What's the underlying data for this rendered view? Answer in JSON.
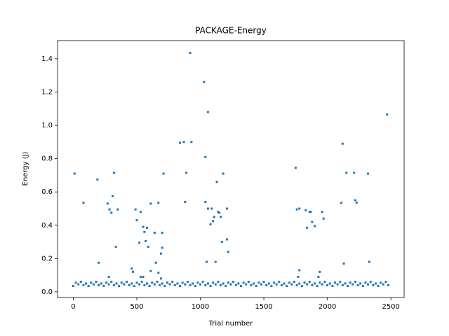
{
  "chart_data": {
    "type": "scatter",
    "title": "PACKAGE-Energy",
    "xlabel": "Trial number",
    "ylabel": "Energy (J)",
    "color": "#1f77b4",
    "xlim": [
      -124,
      2604
    ],
    "ylim": [
      -0.034,
      1.509
    ],
    "xticks": [
      0,
      500,
      1000,
      1500,
      2000,
      2500
    ],
    "yticks": [
      {
        "value": 0,
        "label": "0.0"
      },
      0.2,
      0.4,
      0.6,
      0.8,
      {
        "value": 1,
        "label": "1.0"
      },
      1.2,
      1.4
    ],
    "x": [
      0,
      20,
      40,
      60,
      80,
      100,
      120,
      140,
      160,
      180,
      200,
      220,
      240,
      260,
      280,
      300,
      320,
      340,
      360,
      380,
      400,
      420,
      440,
      460,
      480,
      500,
      520,
      540,
      560,
      580,
      600,
      620,
      640,
      660,
      680,
      700,
      720,
      740,
      760,
      780,
      800,
      820,
      840,
      860,
      880,
      900,
      920,
      940,
      960,
      980,
      1000,
      1020,
      1040,
      1060,
      1080,
      1100,
      1120,
      1140,
      1160,
      1180,
      1200,
      1220,
      1240,
      1260,
      1280,
      1300,
      1320,
      1340,
      1360,
      1380,
      1400,
      1420,
      1440,
      1460,
      1480,
      1500,
      1520,
      1540,
      1560,
      1580,
      1600,
      1620,
      1640,
      1660,
      1680,
      1700,
      1720,
      1740,
      1760,
      1780,
      1800,
      1820,
      1840,
      1860,
      1880,
      1900,
      1920,
      1940,
      1960,
      1980,
      2000,
      2020,
      2040,
      2060,
      2080,
      2100,
      2120,
      2140,
      2160,
      2180,
      2200,
      2220,
      2240,
      2260,
      2280,
      2300,
      2320,
      2340,
      2360,
      2380,
      2400,
      2420,
      2440,
      2460,
      2480,
      10,
      80,
      190,
      200,
      270,
      280,
      285,
      300,
      310,
      320,
      335,
      350,
      460,
      470,
      490,
      500,
      520,
      530,
      530,
      550,
      550,
      560,
      570,
      580,
      590,
      610,
      610,
      640,
      650,
      670,
      670,
      690,
      690,
      700,
      700,
      710,
      840,
      870,
      880,
      890,
      920,
      930,
      1030,
      1040,
      1040,
      1050,
      1060,
      1060,
      1080,
      1090,
      1100,
      1110,
      1120,
      1130,
      1140,
      1150,
      1160,
      1170,
      1180,
      1210,
      1210,
      1220,
      1750,
      1760,
      1780,
      1780,
      1770,
      1830,
      1840,
      1860,
      1870,
      1880,
      1900,
      1940,
      1930,
      1960,
      1970,
      2110,
      2120,
      2130,
      2150,
      2210,
      2220,
      2230,
      2320,
      2330,
      2470
    ],
    "values": [
      0.035,
      0.055,
      0.045,
      0.06,
      0.04,
      0.05,
      0.035,
      0.055,
      0.045,
      0.06,
      0.04,
      0.05,
      0.035,
      0.055,
      0.045,
      0.06,
      0.04,
      0.05,
      0.035,
      0.055,
      0.045,
      0.06,
      0.04,
      0.05,
      0.035,
      0.055,
      0.045,
      0.06,
      0.04,
      0.05,
      0.035,
      0.055,
      0.045,
      0.06,
      0.04,
      0.05,
      0.035,
      0.055,
      0.045,
      0.06,
      0.04,
      0.05,
      0.035,
      0.055,
      0.045,
      0.06,
      0.04,
      0.05,
      0.035,
      0.055,
      0.045,
      0.06,
      0.04,
      0.05,
      0.035,
      0.055,
      0.045,
      0.06,
      0.04,
      0.05,
      0.035,
      0.055,
      0.045,
      0.06,
      0.04,
      0.05,
      0.035,
      0.055,
      0.045,
      0.06,
      0.04,
      0.05,
      0.035,
      0.055,
      0.045,
      0.06,
      0.04,
      0.05,
      0.035,
      0.055,
      0.045,
      0.06,
      0.04,
      0.05,
      0.035,
      0.055,
      0.045,
      0.06,
      0.04,
      0.05,
      0.035,
      0.055,
      0.045,
      0.06,
      0.04,
      0.05,
      0.035,
      0.055,
      0.045,
      0.06,
      0.04,
      0.05,
      0.035,
      0.055,
      0.045,
      0.06,
      0.04,
      0.05,
      0.035,
      0.055,
      0.045,
      0.06,
      0.04,
      0.05,
      0.035,
      0.055,
      0.045,
      0.06,
      0.04,
      0.05,
      0.035,
      0.055,
      0.045,
      0.06,
      0.04,
      0.71,
      0.535,
      0.675,
      0.175,
      0.53,
      0.09,
      0.495,
      0.475,
      0.575,
      0.715,
      0.27,
      0.495,
      0.14,
      0.12,
      0.495,
      0.43,
      0.295,
      0.48,
      0.09,
      0.09,
      0.39,
      0.36,
      0.305,
      0.385,
      0.27,
      0.53,
      0.125,
      0.355,
      0.175,
      0.535,
      0.115,
      0.23,
      0.08,
      0.355,
      0.265,
      0.71,
      0.895,
      0.9,
      0.54,
      0.715,
      1.435,
      0.9,
      1.26,
      0.81,
      0.54,
      0.18,
      1.08,
      0.5,
      0.405,
      0.5,
      0.425,
      0.45,
      0.18,
      0.66,
      0.48,
      0.475,
      0.45,
      0.3,
      0.71,
      0.5,
      0.315,
      0.24,
      0.745,
      0.495,
      0.5,
      0.13,
      0.09,
      0.49,
      0.385,
      0.48,
      0.48,
      0.42,
      0.395,
      0.12,
      0.09,
      0.48,
      0.44,
      0.535,
      0.89,
      0.17,
      0.715,
      0.715,
      0.55,
      0.535,
      0.71,
      0.18,
      1.065
    ]
  }
}
